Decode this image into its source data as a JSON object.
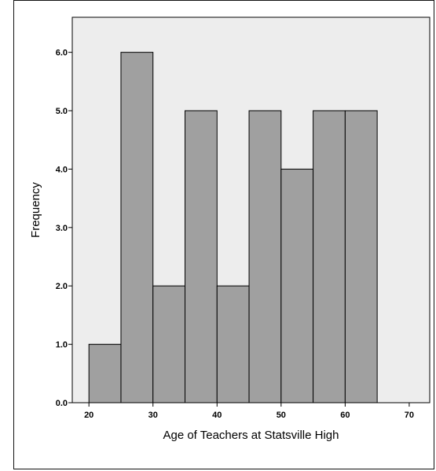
{
  "chart_data": {
    "type": "bar",
    "subtype": "histogram",
    "xlabel": "Age of Teachers at Statsville High",
    "ylabel": "Frequency",
    "bins": [
      {
        "start": 20,
        "end": 25,
        "value": 1
      },
      {
        "start": 25,
        "end": 30,
        "value": 6
      },
      {
        "start": 30,
        "end": 35,
        "value": 2
      },
      {
        "start": 35,
        "end": 40,
        "value": 5
      },
      {
        "start": 40,
        "end": 45,
        "value": 2
      },
      {
        "start": 45,
        "end": 50,
        "value": 5
      },
      {
        "start": 50,
        "end": 55,
        "value": 4
      },
      {
        "start": 55,
        "end": 60,
        "value": 5
      },
      {
        "start": 60,
        "end": 65,
        "value": 5
      }
    ],
    "xticks": [
      20,
      30,
      40,
      50,
      60,
      70
    ],
    "xtick_labels": [
      "20",
      "30",
      "40",
      "50",
      "60",
      "70"
    ],
    "yticks": [
      0,
      1,
      2,
      3,
      4,
      5,
      6
    ],
    "ytick_labels": [
      "0.0",
      "1.0",
      "2.0",
      "3.0",
      "4.0",
      "5.0",
      "6.0"
    ],
    "xlim": [
      17.4,
      73.2
    ],
    "ylim": [
      0,
      6.6
    ],
    "grid": false,
    "colors": {
      "bar_fill": "#a0a0a0",
      "bar_stroke": "#000000",
      "plot_background": "#ededed"
    }
  }
}
